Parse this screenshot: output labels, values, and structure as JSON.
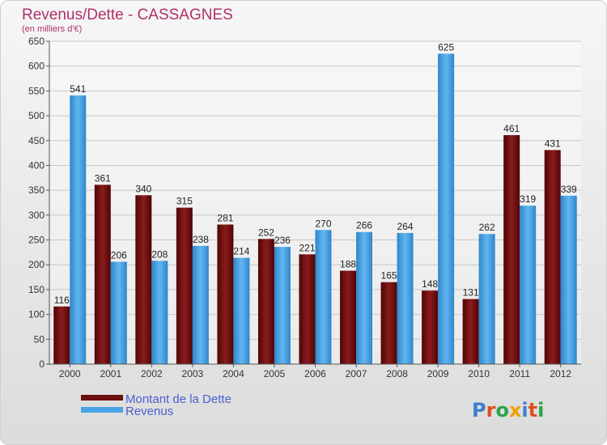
{
  "chart_data": {
    "type": "bar",
    "title": "Revenus/Dette - CASSAGNES",
    "subtitle": "(en milliers d'€)",
    "categories": [
      "2000",
      "2001",
      "2002",
      "2003",
      "2004",
      "2005",
      "2006",
      "2007",
      "2008",
      "2009",
      "2010",
      "2011",
      "2012"
    ],
    "series": [
      {
        "name": "Montant de la Dette",
        "values": [
          116,
          361,
          340,
          315,
          281,
          252,
          221,
          188,
          165,
          148,
          131,
          461,
          431
        ],
        "color": "#6b0f0f"
      },
      {
        "name": "Revenus",
        "values": [
          541,
          206,
          208,
          238,
          214,
          236,
          270,
          266,
          264,
          625,
          262,
          319,
          339
        ],
        "color": "#4aa3e6"
      }
    ],
    "ylim": [
      0,
      650
    ],
    "yticks": [
      0,
      50,
      100,
      150,
      200,
      250,
      300,
      350,
      400,
      450,
      500,
      550,
      600,
      650
    ],
    "grid": true,
    "legend": "bottom-left"
  },
  "logo": {
    "text": "Proxiti",
    "colors": [
      "#3b7fd1",
      "#e0501c",
      "#2aa34a",
      "#f2a000",
      "#3b7fd1",
      "#e0501c",
      "#2aa34a"
    ]
  }
}
